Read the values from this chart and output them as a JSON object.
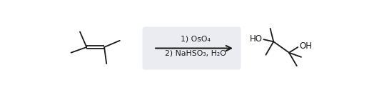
{
  "background_color": "#ffffff",
  "box_color": "#eaecf2",
  "line_color": "#1a1a1a",
  "text_color": "#1a1a1a",
  "arrow_label1": "1) OsO₄",
  "arrow_label2": "2) NaHSO₃, H₂O",
  "figsize": [
    5.24,
    1.33
  ],
  "dpi": 100,
  "lw": 1.3
}
